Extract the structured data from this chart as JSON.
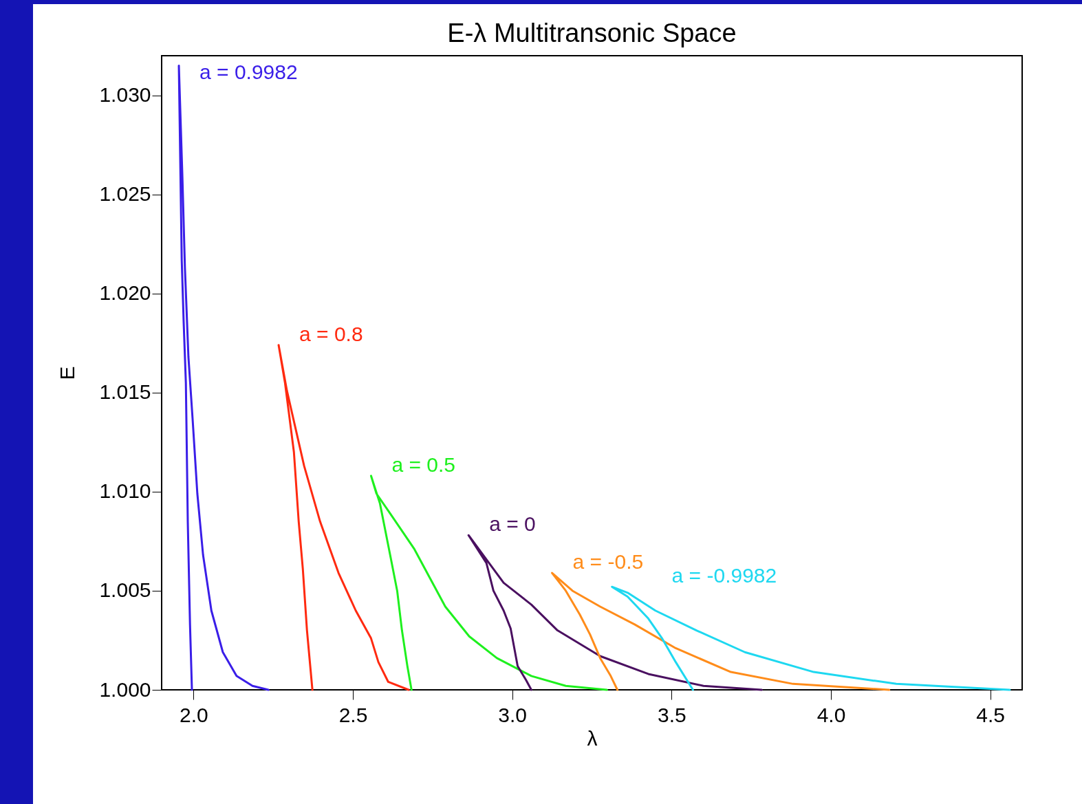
{
  "chart_data": {
    "type": "line",
    "title": "E-λ Multitransonic Space",
    "xlabel": "λ",
    "ylabel": "E",
    "xlim": [
      1.9,
      4.6
    ],
    "ylim": [
      1.0,
      1.032
    ],
    "xticks": [
      {
        "value": 2,
        "label": "2.0"
      },
      {
        "value": 2.5,
        "label": "2.5"
      },
      {
        "value": 3,
        "label": "3.0"
      },
      {
        "value": 3.5,
        "label": "3.5"
      },
      {
        "value": 4,
        "label": "4.0"
      },
      {
        "value": 4.5,
        "label": "4.5"
      }
    ],
    "yticks": [
      {
        "value": 1,
        "label": "1.000"
      },
      {
        "value": 1.005,
        "label": "1.005"
      },
      {
        "value": 1.01,
        "label": "1.010"
      },
      {
        "value": 1.015,
        "label": "1.015"
      },
      {
        "value": 1.02,
        "label": "1.020"
      },
      {
        "value": 1.025,
        "label": "1.025"
      },
      {
        "value": 1.03,
        "label": "1.030"
      }
    ],
    "grid": false,
    "legend": false,
    "marker": "none",
    "line_style": "solid",
    "series": [
      {
        "name": "a = 0.9982",
        "color": "#3a1ee8",
        "x": [
          1.995,
          1.989,
          1.982,
          1.976,
          1.969,
          1.963,
          1.954,
          1.965,
          1.973,
          1.984,
          1.997,
          2.012,
          2.03,
          2.056,
          2.092,
          2.135,
          2.185,
          2.235
        ],
        "values": [
          1.0,
          1.0033,
          1.0085,
          1.0155,
          1.0186,
          1.0217,
          1.0315,
          1.0259,
          1.0213,
          1.0168,
          1.0137,
          1.0099,
          1.0068,
          1.004,
          1.0019,
          1.0007,
          1.0002,
          1.0
        ]
      },
      {
        "name": "a = 0.8",
        "color": "#ff2a10",
        "x": [
          2.373,
          2.356,
          2.343,
          2.33,
          2.315,
          2.287,
          2.267,
          2.293,
          2.347,
          2.397,
          2.455,
          2.509,
          2.557,
          2.58,
          2.611,
          2.675
        ],
        "values": [
          1.0,
          1.003,
          1.0061,
          1.0085,
          1.012,
          1.0155,
          1.0174,
          1.0151,
          1.0113,
          1.0085,
          1.0059,
          1.004,
          1.0026,
          1.0014,
          1.0004,
          1.0
        ]
      },
      {
        "name": "a = 0.5",
        "color": "#1ef01e",
        "x": [
          2.684,
          2.671,
          2.654,
          2.639,
          2.617,
          2.585,
          2.557,
          2.574,
          2.617,
          2.693,
          2.79,
          2.865,
          2.952,
          3.06,
          3.168,
          3.297
        ],
        "values": [
          1.0,
          1.0012,
          1.003,
          1.005,
          1.0068,
          1.0094,
          1.0108,
          1.0099,
          1.0089,
          1.0071,
          1.0042,
          1.0027,
          1.0016,
          1.0007,
          1.0002,
          1.0
        ]
      },
      {
        "name": "a = 0",
        "color": "#4a1060",
        "x": [
          3.06,
          3.043,
          3.017,
          2.995,
          2.973,
          2.941,
          2.919,
          2.863,
          2.909,
          2.973,
          3.06,
          3.142,
          3.276,
          3.427,
          3.6,
          3.783
        ],
        "values": [
          1.0,
          1.0005,
          1.0012,
          1.0031,
          1.004,
          1.005,
          1.0064,
          1.0078,
          1.0068,
          1.0054,
          1.0043,
          1.003,
          1.0017,
          1.0008,
          1.0002,
          1.0
        ]
      },
      {
        "name": "a = -0.5",
        "color": "#ff8c1a",
        "x": [
          3.33,
          3.309,
          3.276,
          3.244,
          3.212,
          3.168,
          3.125,
          3.189,
          3.276,
          3.384,
          3.513,
          3.686,
          3.881,
          4.183
        ],
        "values": [
          1.0,
          1.0007,
          1.0016,
          1.0028,
          1.0038,
          1.005,
          1.0059,
          1.005,
          1.0042,
          1.0033,
          1.0021,
          1.0009,
          1.0003,
          1.0
        ]
      },
      {
        "name": "a = -0.9982",
        "color": "#1ed8f0",
        "x": [
          3.567,
          3.513,
          3.47,
          3.427,
          3.362,
          3.313,
          3.362,
          3.449,
          3.578,
          3.73,
          3.946,
          4.205,
          4.561
        ],
        "values": [
          1.0,
          1.0014,
          1.0026,
          1.0036,
          1.0047,
          1.0052,
          1.0049,
          1.004,
          1.003,
          1.0019,
          1.0009,
          1.0003,
          1.0
        ]
      }
    ]
  }
}
